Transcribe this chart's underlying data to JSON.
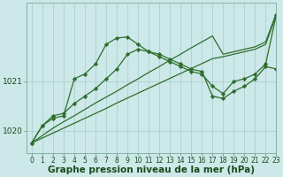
{
  "background_color": "#cce8e8",
  "grid_color": "#aacccc",
  "line_color": "#2d6e2d",
  "marker_color": "#2d6e2d",
  "xlabel": "Graphe pression niveau de la mer (hPa)",
  "xlabel_fontsize": 7.5,
  "tick_fontsize": 5.5,
  "ytick_label_fontsize": 6.5,
  "xlim": [
    -0.5,
    23
  ],
  "ylim": [
    1019.55,
    1022.6
  ],
  "yticks": [
    1020,
    1021
  ],
  "ytick_labels": [
    "1020",
    "1021"
  ],
  "xticks": [
    0,
    1,
    2,
    3,
    4,
    5,
    6,
    7,
    8,
    9,
    10,
    11,
    12,
    13,
    14,
    15,
    16,
    17,
    18,
    19,
    20,
    21,
    22,
    23
  ],
  "series": [
    {
      "x": [
        0,
        1,
        2,
        3,
        4,
        5,
        6,
        7,
        8,
        9,
        10,
        11,
        12,
        13,
        14,
        15,
        16,
        17,
        18,
        19,
        20,
        21,
        22,
        23
      ],
      "y": [
        1019.75,
        1020.1,
        1020.25,
        1020.3,
        1021.05,
        1021.15,
        1021.35,
        1021.75,
        1021.88,
        1021.9,
        1021.75,
        1021.6,
        1021.55,
        1021.45,
        1021.35,
        1021.25,
        1021.2,
        1020.7,
        1020.65,
        1020.8,
        1020.9,
        1021.05,
        1021.3,
        1021.25
      ],
      "lw": 0.9,
      "has_markers": true
    },
    {
      "x": [
        0,
        1,
        2,
        3,
        4,
        5,
        6,
        7,
        8,
        9,
        10,
        11,
        12,
        13,
        14,
        15,
        16,
        17,
        18,
        19,
        20,
        21,
        22,
        23
      ],
      "y": [
        1019.75,
        1020.1,
        1020.3,
        1020.35,
        1020.55,
        1020.7,
        1020.85,
        1021.05,
        1021.25,
        1021.55,
        1021.65,
        1021.6,
        1021.5,
        1021.4,
        1021.3,
        1021.2,
        1021.15,
        1020.9,
        1020.75,
        1021.0,
        1021.05,
        1021.15,
        1021.35,
        1022.35
      ],
      "lw": 0.9,
      "has_markers": true
    },
    {
      "x": [
        0,
        1,
        2,
        3,
        4,
        5,
        6,
        7,
        8,
        9,
        10,
        11,
        12,
        13,
        14,
        15,
        16,
        17,
        18,
        19,
        20,
        21,
        22,
        23
      ],
      "y": [
        1019.75,
        1019.85,
        1019.95,
        1020.05,
        1020.15,
        1020.25,
        1020.35,
        1020.45,
        1020.56,
        1020.66,
        1020.76,
        1020.86,
        1020.96,
        1021.06,
        1021.16,
        1021.26,
        1021.36,
        1021.46,
        1021.5,
        1021.55,
        1021.6,
        1021.65,
        1021.75,
        1022.35
      ],
      "lw": 0.9,
      "has_markers": false
    },
    {
      "x": [
        0,
        1,
        2,
        3,
        4,
        5,
        6,
        7,
        8,
        9,
        10,
        11,
        12,
        13,
        14,
        15,
        16,
        17,
        18,
        19,
        20,
        21,
        22,
        23
      ],
      "y": [
        1019.75,
        1019.9,
        1020.05,
        1020.18,
        1020.3,
        1020.43,
        1020.56,
        1020.68,
        1020.8,
        1020.93,
        1021.05,
        1021.18,
        1021.3,
        1021.43,
        1021.55,
        1021.68,
        1021.8,
        1021.92,
        1021.55,
        1021.6,
        1021.65,
        1021.7,
        1021.8,
        1022.38
      ],
      "lw": 0.9,
      "has_markers": false
    }
  ]
}
